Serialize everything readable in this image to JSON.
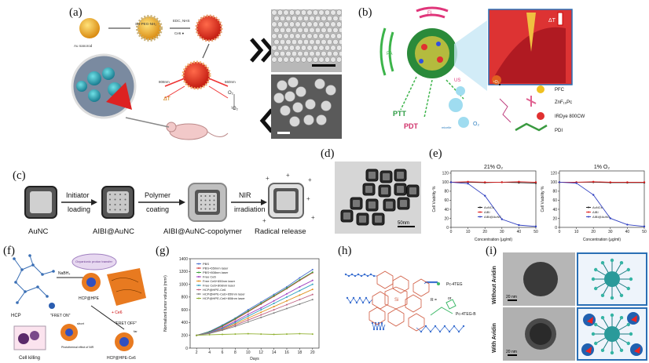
{
  "labels": {
    "a": "(a)",
    "b": "(b)",
    "c": "(c)",
    "d": "(d)",
    "e": "(e)",
    "f": "(f)",
    "g": "(g)",
    "h": "(h)",
    "i": "(i)"
  },
  "panel_a": {
    "steps": [
      "Au nanorod",
      "SH-PEG-NH₂",
      "EDC, NHS",
      "Ce6 ●",
      "808nm",
      "660nm",
      "ΔT",
      "O₂",
      "¹O₂"
    ]
  },
  "panel_b": {
    "modes": [
      "FL",
      "PA",
      "US",
      "PTT",
      "PDT"
    ],
    "legend": [
      "PFC",
      "ZnF₁₆Pc",
      "IRDye 800CW",
      "PDI"
    ],
    "other": [
      "ΔT",
      "¹O₂",
      "O₂",
      "micelle"
    ]
  },
  "panel_c": {
    "steps": [
      "AuNC",
      "AIBI@AuNC",
      "AIBI@AuNC-copolymer",
      "Radical release"
    ],
    "arrows": [
      [
        "Initiator",
        "loading"
      ],
      [
        "Polymer",
        "coating"
      ],
      [
        "NIR",
        "irradiation"
      ]
    ]
  },
  "panel_d": {
    "scale": "50nm"
  },
  "panel_e": {
    "A": {
      "title": "21% O₂"
    },
    "B": {
      "title": "1% O₂"
    },
    "xlabel": "Concentration (μg/ml)",
    "ylabel": "Cell Viability %",
    "legend": [
      "AuNCs",
      "AIBI",
      "AIBI@AuNC"
    ]
  },
  "panel_f": {
    "texts": [
      "HCP",
      "NaBH₄",
      "Oxyanionic proton transfer",
      "HCP@HPE",
      "+ Ce6",
      "\"FRET ON\"",
      "\"FRET OFF\"",
      "short",
      "far",
      "Photothermal effect of NIR",
      "Cell killing",
      "HCP@HPE-Ce6"
    ]
  },
  "panel_g": {
    "xlabel": "Days",
    "ylabel": "Normalized tumor volume (mm³)",
    "legend": [
      "PBS",
      "PBS+650nm laser",
      "PBS+808nm laser",
      "Free Ce6",
      "Free Ce6+650nm laser",
      "Free Ce6+808nm laser",
      "HCP@HPE-Ce6",
      "HCP@HPE-Ce6+650nm laser",
      "HCP@HPE-Ce6+808nm laser"
    ]
  },
  "panel_h": {
    "texts": [
      "Pc-4TEG",
      "R =",
      "or",
      "Pc-4TEG-B"
    ]
  },
  "panel_i": {
    "rows": [
      "Without Avidin",
      "With Avidin"
    ],
    "scale": "20 nm"
  },
  "chart_data": [
    {
      "type": "line",
      "title": "21% O₂",
      "xlabel": "Concentration (μg/ml)",
      "ylabel": "Cell Viability %",
      "x": [
        0,
        10,
        20,
        30,
        40,
        50
      ],
      "ylim": [
        0,
        125
      ],
      "series": [
        {
          "name": "AuNCs",
          "color": "#222222",
          "values": [
            100,
            100,
            99,
            100,
            99,
            98
          ]
        },
        {
          "name": "AIBI",
          "color": "#e02020",
          "values": [
            100,
            101,
            100,
            100,
            101,
            100
          ]
        },
        {
          "name": "AIBI@AuNC",
          "color": "#3040c0",
          "values": [
            100,
            97,
            70,
            18,
            5,
            2
          ]
        }
      ]
    },
    {
      "type": "line",
      "title": "1% O₂",
      "xlabel": "Concentration (μg/ml)",
      "ylabel": "Cell Viability %",
      "x": [
        0,
        10,
        20,
        30,
        40,
        50
      ],
      "ylim": [
        0,
        125
      ],
      "series": [
        {
          "name": "AuNCs",
          "color": "#222222",
          "values": [
            100,
            100,
            100,
            99,
            99,
            99
          ]
        },
        {
          "name": "AIBI",
          "color": "#e02020",
          "values": [
            100,
            100,
            101,
            100,
            100,
            100
          ]
        },
        {
          "name": "AIBI@AuNC",
          "color": "#3040c0",
          "values": [
            100,
            98,
            72,
            20,
            6,
            2
          ]
        }
      ]
    },
    {
      "type": "line",
      "xlabel": "Days",
      "ylabel": "Normalized tumor volume (mm³)",
      "x": [
        2,
        4,
        6,
        8,
        10,
        12,
        14,
        16,
        18,
        20
      ],
      "ylim": [
        0,
        1400
      ],
      "series": [
        {
          "name": "PBS",
          "color": "#4a6fd0",
          "values": [
            200,
            260,
            360,
            470,
            600,
            720,
            840,
            960,
            1100,
            1230
          ]
        },
        {
          "name": "PBS+650nm laser",
          "color": "#d04040",
          "values": [
            200,
            250,
            340,
            450,
            570,
            690,
            810,
            930,
            1060,
            1180
          ]
        },
        {
          "name": "PBS+808nm laser",
          "color": "#40a040",
          "values": [
            200,
            255,
            350,
            460,
            580,
            700,
            820,
            940,
            1070,
            1190
          ]
        },
        {
          "name": "Free Ce6",
          "color": "#a040c0",
          "values": [
            200,
            245,
            320,
            420,
            530,
            630,
            740,
            850,
            960,
            1060
          ]
        },
        {
          "name": "Free Ce6+650nm laser",
          "color": "#e09020",
          "values": [
            200,
            240,
            300,
            380,
            470,
            560,
            650,
            740,
            830,
            920
          ]
        },
        {
          "name": "Free Ce6+808nm laser",
          "color": "#30a0c0",
          "values": [
            200,
            240,
            310,
            400,
            500,
            600,
            700,
            800,
            900,
            1000
          ]
        },
        {
          "name": "HCP@HPE-Ce6",
          "color": "#c06080",
          "values": [
            200,
            235,
            290,
            360,
            440,
            520,
            600,
            680,
            760,
            840
          ]
        },
        {
          "name": "HCP@HPE-Ce6+650nm laser",
          "color": "#808080",
          "values": [
            200,
            230,
            280,
            340,
            410,
            480,
            550,
            620,
            690,
            760
          ]
        },
        {
          "name": "HCP@HPE-Ce6+808nm laser",
          "color": "#90b030",
          "values": [
            200,
            210,
            215,
            220,
            225,
            220,
            215,
            220,
            225,
            220
          ]
        }
      ]
    }
  ]
}
